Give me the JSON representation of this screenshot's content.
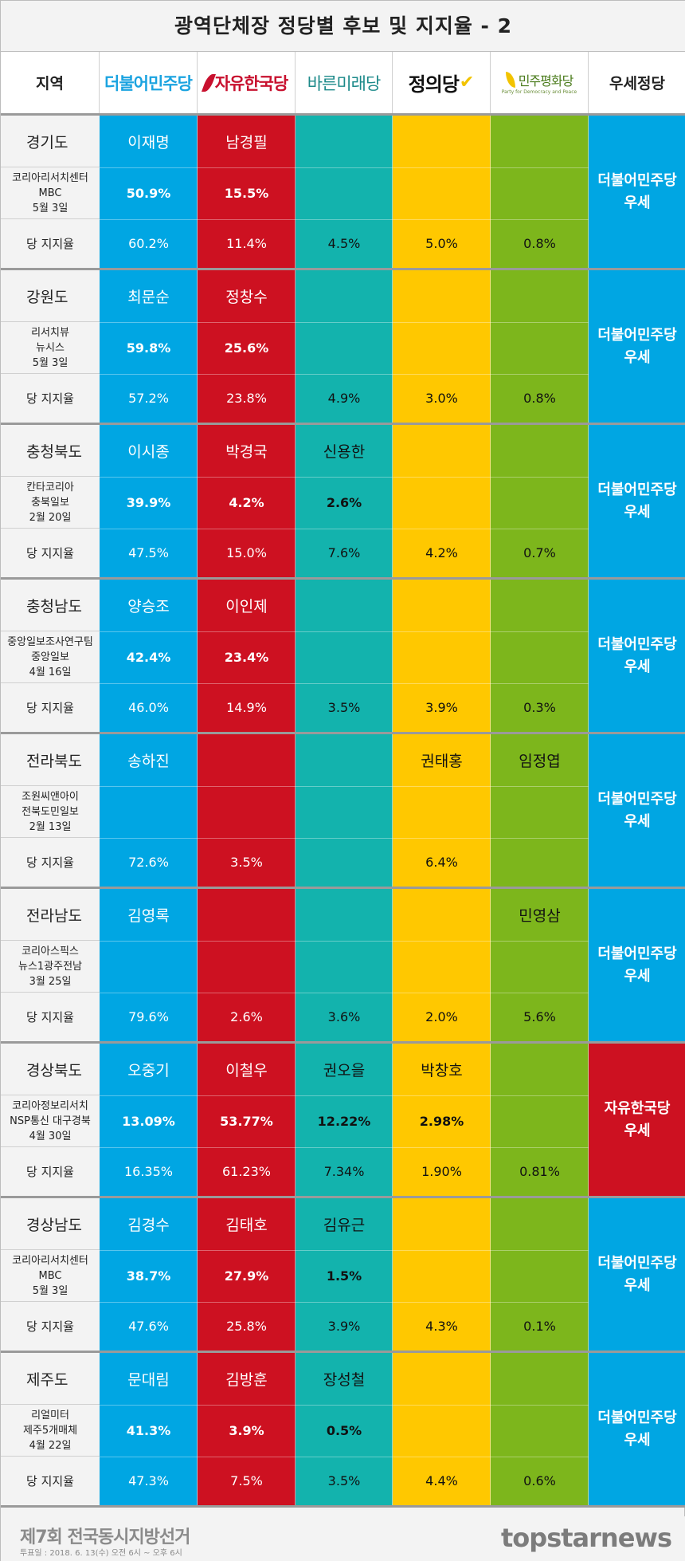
{
  "title": "광역단체장 정당별 후보 및 지지율 - 2",
  "header": {
    "region": "지역",
    "parties": [
      "더불어민주당",
      "자유한국당",
      "바른미래당",
      "정의당",
      "민주평화당"
    ],
    "pdp_sub": "Party for Democracy and Peace",
    "leading": "우세정당"
  },
  "colors": {
    "dem": "#00a6e3",
    "lkp": "#cd1121",
    "bar": "#13b3ad",
    "jus": "#ffc800",
    "pdp": "#7db61c"
  },
  "regions": [
    {
      "name": "경기도",
      "source": [
        "코리아리서치센터",
        "MBC",
        "5월 3일"
      ],
      "candidates": [
        "이재명",
        "남경필",
        "",
        "",
        ""
      ],
      "poll": [
        "50.9%",
        "15.5%",
        "",
        "",
        ""
      ],
      "party_support_label": "당 지지율",
      "party_support": [
        "60.2%",
        "11.4%",
        "4.5%",
        "5.0%",
        "0.8%"
      ],
      "leading": [
        "더불어민주당",
        "우세"
      ],
      "leading_party": "dem"
    },
    {
      "name": "강원도",
      "source": [
        "리서치뷰",
        "뉴시스",
        "5월 3일"
      ],
      "candidates": [
        "최문순",
        "정창수",
        "",
        "",
        ""
      ],
      "poll": [
        "59.8%",
        "25.6%",
        "",
        "",
        ""
      ],
      "party_support_label": "당 지지율",
      "party_support": [
        "57.2%",
        "23.8%",
        "4.9%",
        "3.0%",
        "0.8%"
      ],
      "leading": [
        "더불어민주당",
        "우세"
      ],
      "leading_party": "dem"
    },
    {
      "name": "충청북도",
      "source": [
        "칸타코리아",
        "충북일보",
        "2월 20일"
      ],
      "candidates": [
        "이시종",
        "박경국",
        "신용한",
        "",
        ""
      ],
      "poll": [
        "39.9%",
        "4.2%",
        "2.6%",
        "",
        ""
      ],
      "party_support_label": "당 지지율",
      "party_support": [
        "47.5%",
        "15.0%",
        "7.6%",
        "4.2%",
        "0.7%"
      ],
      "leading": [
        "더불어민주당",
        "우세"
      ],
      "leading_party": "dem"
    },
    {
      "name": "충청남도",
      "source": [
        "중앙일보조사연구팀",
        "중앙일보",
        "4월 16일"
      ],
      "candidates": [
        "양승조",
        "이인제",
        "",
        "",
        ""
      ],
      "poll": [
        "42.4%",
        "23.4%",
        "",
        "",
        ""
      ],
      "party_support_label": "당 지지율",
      "party_support": [
        "46.0%",
        "14.9%",
        "3.5%",
        "3.9%",
        "0.3%"
      ],
      "leading": [
        "더불어민주당",
        "우세"
      ],
      "leading_party": "dem"
    },
    {
      "name": "전라북도",
      "source": [
        "조원씨앤아이",
        "전북도민일보",
        "2월 13일"
      ],
      "candidates": [
        "송하진",
        "",
        "",
        "권태홍",
        "임정엽"
      ],
      "poll": [
        "",
        "",
        "",
        "",
        ""
      ],
      "party_support_label": "당 지지율",
      "party_support": [
        "72.6%",
        "3.5%",
        "",
        "6.4%",
        ""
      ],
      "leading": [
        "더불어민주당",
        "우세"
      ],
      "leading_party": "dem"
    },
    {
      "name": "전라남도",
      "source": [
        "코리아스픽스",
        "뉴스1광주전남",
        "3월 25일"
      ],
      "candidates": [
        "김영록",
        "",
        "",
        "",
        "민영삼"
      ],
      "poll": [
        "",
        "",
        "",
        "",
        ""
      ],
      "party_support_label": "당 지지율",
      "party_support": [
        "79.6%",
        "2.6%",
        "3.6%",
        "2.0%",
        "5.6%"
      ],
      "leading": [
        "더불어민주당",
        "우세"
      ],
      "leading_party": "dem"
    },
    {
      "name": "경상북도",
      "source": [
        "코리아정보리서치",
        "NSP통신 대구경북",
        "4월 30일"
      ],
      "candidates": [
        "오중기",
        "이철우",
        "권오을",
        "박창호",
        ""
      ],
      "poll": [
        "13.09%",
        "53.77%",
        "12.22%",
        "2.98%",
        ""
      ],
      "party_support_label": "당 지지율",
      "party_support": [
        "16.35%",
        "61.23%",
        "7.34%",
        "1.90%",
        "0.81%"
      ],
      "leading": [
        "자유한국당",
        "우세"
      ],
      "leading_party": "lkp"
    },
    {
      "name": "경상남도",
      "source": [
        "코리아리서치센터",
        "MBC",
        "5월 3일"
      ],
      "candidates": [
        "김경수",
        "김태호",
        "김유근",
        "",
        ""
      ],
      "poll": [
        "38.7%",
        "27.9%",
        "1.5%",
        "",
        ""
      ],
      "party_support_label": "당 지지율",
      "party_support": [
        "47.6%",
        "25.8%",
        "3.9%",
        "4.3%",
        "0.1%"
      ],
      "leading": [
        "더불어민주당",
        "우세"
      ],
      "leading_party": "dem"
    },
    {
      "name": "제주도",
      "source": [
        "리얼미터",
        "제주5개매체",
        "4월 22일"
      ],
      "candidates": [
        "문대림",
        "김방훈",
        "장성철",
        "",
        ""
      ],
      "poll": [
        "41.3%",
        "3.9%",
        "0.5%",
        "",
        ""
      ],
      "party_support_label": "당 지지율",
      "party_support": [
        "47.3%",
        "7.5%",
        "3.5%",
        "4.4%",
        "0.6%"
      ],
      "leading": [
        "더불어민주당",
        "우세"
      ],
      "leading_party": "dem"
    }
  ],
  "footer": {
    "title": "제7회 전국동시지방선거",
    "sub": "투표일 : 2018. 6. 13(수) 오전 6시 ~ 오후 6시",
    "brand": "topstarnews"
  }
}
